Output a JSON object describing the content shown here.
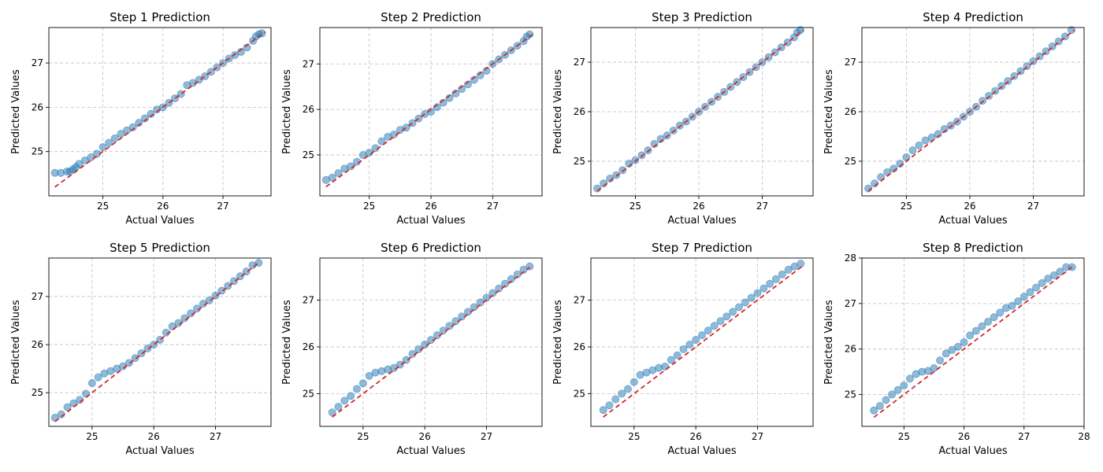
{
  "chart_data": [
    {
      "type": "scatter",
      "title": "Step 1 Prediction",
      "xlabel": "Actual Values",
      "ylabel": "Predicted Values",
      "xlim": [
        24.1,
        27.8
      ],
      "ylim": [
        24.0,
        27.8
      ],
      "xticks": [
        25,
        26,
        27
      ],
      "yticks": [
        25,
        26,
        27
      ],
      "grid": true,
      "reference_line": [
        [
          24.2,
          24.2
        ],
        [
          27.7,
          27.7
        ]
      ],
      "x": [
        24.2,
        24.3,
        24.4,
        24.45,
        24.5,
        24.55,
        24.6,
        24.7,
        24.8,
        24.9,
        25.0,
        25.1,
        25.2,
        25.3,
        25.4,
        25.5,
        25.6,
        25.7,
        25.8,
        25.9,
        26.0,
        26.1,
        26.2,
        26.3,
        26.4,
        26.5,
        26.6,
        26.7,
        26.8,
        26.9,
        27.0,
        27.1,
        27.2,
        27.3,
        27.4,
        27.5,
        27.55,
        27.6,
        27.65
      ],
      "y": [
        24.52,
        24.52,
        24.55,
        24.55,
        24.6,
        24.65,
        24.72,
        24.8,
        24.87,
        24.95,
        25.1,
        25.2,
        25.3,
        25.4,
        25.48,
        25.55,
        25.65,
        25.75,
        25.85,
        25.95,
        26.0,
        26.1,
        26.2,
        26.3,
        26.5,
        26.55,
        26.62,
        26.7,
        26.8,
        26.9,
        27.0,
        27.1,
        27.18,
        27.25,
        27.35,
        27.5,
        27.6,
        27.65,
        27.67
      ]
    },
    {
      "type": "scatter",
      "title": "Step 2 Prediction",
      "xlabel": "Actual Values",
      "ylabel": "Predicted Values",
      "xlim": [
        24.2,
        27.8
      ],
      "ylim": [
        24.1,
        27.8
      ],
      "xticks": [
        25,
        26,
        27
      ],
      "yticks": [
        25,
        26,
        27
      ],
      "grid": true,
      "reference_line": [
        [
          24.3,
          24.3
        ],
        [
          27.65,
          27.65
        ]
      ],
      "x": [
        24.3,
        24.4,
        24.5,
        24.6,
        24.7,
        24.8,
        24.9,
        25.0,
        25.1,
        25.2,
        25.3,
        25.4,
        25.5,
        25.6,
        25.7,
        25.8,
        25.9,
        26.0,
        26.1,
        26.2,
        26.3,
        26.4,
        26.5,
        26.6,
        26.7,
        26.8,
        26.9,
        27.0,
        27.1,
        27.2,
        27.3,
        27.4,
        27.5,
        27.55,
        27.6
      ],
      "y": [
        24.45,
        24.5,
        24.6,
        24.7,
        24.75,
        24.85,
        25.0,
        25.05,
        25.15,
        25.3,
        25.4,
        25.45,
        25.55,
        25.6,
        25.7,
        25.8,
        25.9,
        25.95,
        26.05,
        26.15,
        26.25,
        26.35,
        26.45,
        26.55,
        26.65,
        26.75,
        26.85,
        27.0,
        27.1,
        27.2,
        27.3,
        27.4,
        27.5,
        27.6,
        27.65
      ]
    },
    {
      "type": "scatter",
      "title": "Step 3 Prediction",
      "xlabel": "Actual Values",
      "ylabel": "Predicted Values",
      "xlim": [
        24.3,
        27.8
      ],
      "ylim": [
        24.3,
        27.7
      ],
      "xticks": [
        25,
        26,
        27
      ],
      "yticks": [
        25,
        26,
        27
      ],
      "grid": true,
      "reference_line": [
        [
          24.4,
          24.4
        ],
        [
          27.65,
          27.65
        ]
      ],
      "x": [
        24.4,
        24.5,
        24.6,
        24.7,
        24.8,
        24.9,
        25.0,
        25.1,
        25.2,
        25.3,
        25.4,
        25.5,
        25.6,
        25.7,
        25.8,
        25.9,
        26.0,
        26.1,
        26.2,
        26.3,
        26.4,
        26.5,
        26.6,
        26.7,
        26.8,
        26.9,
        27.0,
        27.1,
        27.2,
        27.3,
        27.4,
        27.5,
        27.55,
        27.6
      ],
      "y": [
        24.45,
        24.55,
        24.65,
        24.72,
        24.82,
        24.95,
        25.02,
        25.12,
        25.22,
        25.35,
        25.45,
        25.52,
        25.62,
        25.72,
        25.8,
        25.9,
        26.0,
        26.1,
        26.2,
        26.3,
        26.4,
        26.5,
        26.6,
        26.7,
        26.8,
        26.9,
        27.0,
        27.1,
        27.2,
        27.3,
        27.4,
        27.5,
        27.6,
        27.65
      ]
    },
    {
      "type": "scatter",
      "title": "Step 4 Prediction",
      "xlabel": "Actual Values",
      "ylabel": "Predicted Values",
      "xlim": [
        24.3,
        27.8
      ],
      "ylim": [
        24.3,
        27.7
      ],
      "xticks": [
        25,
        26,
        27
      ],
      "yticks": [
        25,
        26,
        27
      ],
      "grid": true,
      "reference_line": [
        [
          24.4,
          24.4
        ],
        [
          27.65,
          27.65
        ]
      ],
      "x": [
        24.4,
        24.5,
        24.6,
        24.7,
        24.8,
        24.9,
        25.0,
        25.1,
        25.2,
        25.3,
        25.4,
        25.5,
        25.6,
        25.7,
        25.8,
        25.9,
        26.0,
        26.1,
        26.2,
        26.3,
        26.4,
        26.5,
        26.6,
        26.7,
        26.8,
        26.9,
        27.0,
        27.1,
        27.2,
        27.3,
        27.4,
        27.5,
        27.6
      ],
      "y": [
        24.45,
        24.55,
        24.68,
        24.78,
        24.85,
        24.95,
        25.08,
        25.22,
        25.32,
        25.42,
        25.48,
        25.55,
        25.65,
        25.72,
        25.8,
        25.9,
        26.0,
        26.1,
        26.22,
        26.32,
        26.42,
        26.52,
        26.62,
        26.72,
        26.82,
        26.92,
        27.02,
        27.12,
        27.22,
        27.32,
        27.42,
        27.52,
        27.65
      ]
    },
    {
      "type": "scatter",
      "title": "Step 5 Prediction",
      "xlabel": "Actual Values",
      "ylabel": "Predicted Values",
      "xlim": [
        24.3,
        27.9
      ],
      "ylim": [
        24.3,
        27.8
      ],
      "xticks": [
        25,
        26,
        27
      ],
      "yticks": [
        25,
        26,
        27
      ],
      "grid": true,
      "reference_line": [
        [
          24.4,
          24.4
        ],
        [
          27.7,
          27.7
        ]
      ],
      "x": [
        24.4,
        24.5,
        24.6,
        24.7,
        24.8,
        24.9,
        25.0,
        25.1,
        25.2,
        25.3,
        25.4,
        25.5,
        25.6,
        25.7,
        25.8,
        25.9,
        26.0,
        26.1,
        26.2,
        26.3,
        26.4,
        26.5,
        26.6,
        26.7,
        26.8,
        26.9,
        27.0,
        27.1,
        27.2,
        27.3,
        27.4,
        27.5,
        27.6,
        27.7
      ],
      "y": [
        24.48,
        24.55,
        24.7,
        24.78,
        24.85,
        24.98,
        25.2,
        25.32,
        25.4,
        25.45,
        25.5,
        25.55,
        25.62,
        25.72,
        25.82,
        25.92,
        26.0,
        26.1,
        26.25,
        26.38,
        26.45,
        26.55,
        26.65,
        26.75,
        26.85,
        26.92,
        27.02,
        27.12,
        27.22,
        27.32,
        27.42,
        27.52,
        27.65,
        27.7
      ]
    },
    {
      "type": "scatter",
      "title": "Step 6 Prediction",
      "xlabel": "Actual Values",
      "ylabel": "Predicted Values",
      "xlim": [
        24.3,
        27.9
      ],
      "ylim": [
        24.3,
        27.9
      ],
      "xticks": [
        25,
        26,
        27
      ],
      "yticks": [
        25,
        26,
        27
      ],
      "grid": true,
      "reference_line": [
        [
          24.5,
          24.5
        ],
        [
          27.7,
          27.7
        ]
      ],
      "x": [
        24.5,
        24.6,
        24.7,
        24.8,
        24.9,
        25.0,
        25.1,
        25.2,
        25.3,
        25.4,
        25.5,
        25.6,
        25.7,
        25.8,
        25.9,
        26.0,
        26.1,
        26.2,
        26.3,
        26.4,
        26.5,
        26.6,
        26.7,
        26.8,
        26.9,
        27.0,
        27.1,
        27.2,
        27.3,
        27.4,
        27.5,
        27.6,
        27.7
      ],
      "y": [
        24.6,
        24.72,
        24.85,
        24.95,
        25.1,
        25.22,
        25.38,
        25.45,
        25.48,
        25.52,
        25.55,
        25.62,
        25.72,
        25.85,
        25.95,
        26.05,
        26.15,
        26.25,
        26.35,
        26.45,
        26.55,
        26.65,
        26.75,
        26.85,
        26.95,
        27.05,
        27.15,
        27.25,
        27.35,
        27.45,
        27.55,
        27.65,
        27.72
      ]
    },
    {
      "type": "scatter",
      "title": "Step 7 Prediction",
      "xlabel": "Actual Values",
      "ylabel": "Predicted Values",
      "xlim": [
        24.3,
        27.9
      ],
      "ylim": [
        24.3,
        27.9
      ],
      "xticks": [
        25,
        26,
        27
      ],
      "yticks": [
        25,
        26,
        27
      ],
      "grid": true,
      "reference_line": [
        [
          24.5,
          24.5
        ],
        [
          27.75,
          27.75
        ]
      ],
      "x": [
        24.5,
        24.6,
        24.7,
        24.8,
        24.9,
        25.0,
        25.1,
        25.2,
        25.3,
        25.4,
        25.5,
        25.6,
        25.7,
        25.8,
        25.9,
        26.0,
        26.1,
        26.2,
        26.3,
        26.4,
        26.5,
        26.6,
        26.7,
        26.8,
        26.9,
        27.0,
        27.1,
        27.2,
        27.3,
        27.4,
        27.5,
        27.6,
        27.7
      ],
      "y": [
        24.65,
        24.75,
        24.88,
        25.0,
        25.1,
        25.25,
        25.4,
        25.45,
        25.5,
        25.55,
        25.58,
        25.72,
        25.82,
        25.95,
        26.05,
        26.15,
        26.25,
        26.35,
        26.45,
        26.55,
        26.65,
        26.75,
        26.85,
        26.95,
        27.05,
        27.15,
        27.25,
        27.35,
        27.45,
        27.55,
        27.65,
        27.72,
        27.78
      ]
    },
    {
      "type": "scatter",
      "title": "Step 8 Prediction",
      "xlabel": "Actual Values",
      "ylabel": "Predicted Values",
      "xlim": [
        24.3,
        28.0
      ],
      "ylim": [
        24.3,
        28.0
      ],
      "xticks": [
        25,
        26,
        27,
        28
      ],
      "yticks": [
        25,
        26,
        27,
        28
      ],
      "grid": true,
      "reference_line": [
        [
          24.5,
          24.5
        ],
        [
          27.8,
          27.8
        ]
      ],
      "x": [
        24.5,
        24.6,
        24.7,
        24.8,
        24.9,
        25.0,
        25.1,
        25.2,
        25.3,
        25.4,
        25.5,
        25.6,
        25.7,
        25.8,
        25.9,
        26.0,
        26.1,
        26.2,
        26.3,
        26.4,
        26.5,
        26.6,
        26.7,
        26.8,
        26.9,
        27.0,
        27.1,
        27.2,
        27.3,
        27.4,
        27.5,
        27.6,
        27.7,
        27.8
      ],
      "y": [
        24.65,
        24.75,
        24.88,
        25.0,
        25.1,
        25.2,
        25.35,
        25.45,
        25.5,
        25.52,
        25.58,
        25.75,
        25.9,
        25.98,
        26.05,
        26.15,
        26.3,
        26.4,
        26.5,
        26.6,
        26.7,
        26.8,
        26.9,
        26.95,
        27.05,
        27.15,
        27.25,
        27.35,
        27.45,
        27.55,
        27.62,
        27.7,
        27.8,
        27.8
      ]
    }
  ]
}
